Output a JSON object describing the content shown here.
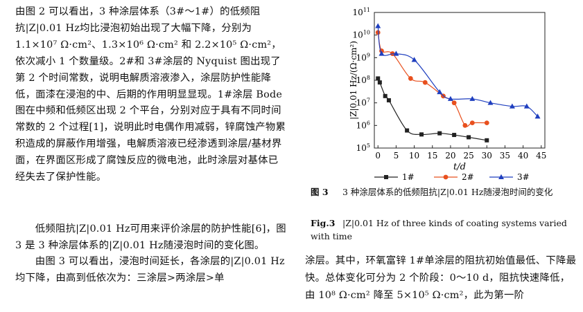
{
  "left_column": {
    "paragraph1": "由图 2 可以看出，3 种涂层体系（3#～1#）的低频阻抗|Z|0.01 Hz均比浸泡初始出现了大幅下降，分别为 1.1×10⁷ Ω·cm²、1.3×10⁶ Ω·cm² 和 2.2×10⁵ Ω·cm²，依次减小 1 个数量级。2#和 3#涂层的 Nyquist 图出现了第 2 个时间常数，说明电解质溶液渗入，涂层防护性能降低，面漆在浸泡的中、后期的作用明显显现。1#涂层 Bode 图在中频和低频区出现 2 个平台，分别对应于具有不同时间常数的 2 个过程[1]，说明此时电偶作用减弱，锌腐蚀产物累积造成的屏蔽作用增强，电解质溶液已经渗透到涂层/基材界面，在界面区形成了腐蚀反应的微电池，此时涂层对基体已经失去了保护性能。",
    "paragraph2": "低频阻抗|Z|0.01 Hz可用来评价涂层的防护性能[6]，图 3 是 3 种涂层体系的|Z|0.01 Hz随浸泡时间的变化图。",
    "paragraph3": "由图 3 可以看出，浸泡时间延长，各涂层的|Z|0.01 Hz均下降，由高到低依次为：三涂层>两涂层>单"
  },
  "right_column": {
    "caption_zh_num": "图 3",
    "caption_zh": "3 种涂层体系的低频阻抗|Z|0.01 Hz随浸泡时间的变化",
    "caption_en_num": "Fig.3",
    "caption_en": "|Z|0.01 Hz of three kinds of coating systems varied with time",
    "paragraph4": "涂层。其中，环氧富锌 1#单涂层的阻抗初始值最低、下降最快。总体变化可分为 2 个阶段：0～10 d，阻抗快速降低，由 10⁸ Ω·cm² 降至 5×10⁵ Ω·cm²，此为第一阶"
  },
  "chart_data": {
    "type": "scatter",
    "xlabel": "t/d",
    "ylabel": "|Z|0.01 Hz/(Ω·cm²)",
    "xlim": [
      -1,
      46
    ],
    "ylim": [
      100000.0,
      100000000000.0
    ],
    "yscale": "log",
    "x_ticks": [
      "0",
      "5",
      "10",
      "15",
      "20",
      "25",
      "30",
      "35",
      "40",
      "45"
    ],
    "y_ticks": [
      "10^5",
      "10^6",
      "10^7",
      "10^8",
      "10^9",
      "10^10",
      "10^11"
    ],
    "legend_position": "bottom",
    "series": [
      {
        "name": "1#",
        "color": "#222222",
        "marker": "square",
        "points": [
          [
            0,
            120000000.0
          ],
          [
            0.5,
            80000000.0
          ],
          [
            2,
            20000000.0
          ],
          [
            3,
            13000000.0
          ],
          [
            8,
            600000.0
          ],
          [
            12,
            400000.0
          ],
          [
            17,
            450000.0
          ],
          [
            21,
            380000.0
          ],
          [
            25,
            300000.0
          ],
          [
            30,
            220000.0
          ]
        ]
      },
      {
        "name": "2#",
        "color": "#e8501e",
        "marker": "circle",
        "points": [
          [
            0,
            13000000000.0
          ],
          [
            1,
            2000000000.0
          ],
          [
            4,
            1500000000.0
          ],
          [
            9,
            120000000.0
          ],
          [
            13,
            80000000.0
          ],
          [
            18,
            20000000.0
          ],
          [
            21,
            10000000.0
          ],
          [
            24,
            1000000.0
          ],
          [
            26,
            1300000.0
          ],
          [
            30,
            1300000.0
          ]
        ]
      },
      {
        "name": "3#",
        "color": "#1f3fbf",
        "marker": "triangle",
        "points": [
          [
            0,
            25000000000.0
          ],
          [
            1,
            1500000000.0
          ],
          [
            5,
            1500000000.0
          ],
          [
            10,
            800000000.0
          ],
          [
            17,
            30000000.0
          ],
          [
            20,
            15000000.0
          ],
          [
            26,
            15000000.0
          ],
          [
            31,
            10000000.0
          ],
          [
            37,
            7000000.0
          ],
          [
            41,
            7000000.0
          ],
          [
            44,
            2500000.0
          ]
        ]
      }
    ]
  }
}
